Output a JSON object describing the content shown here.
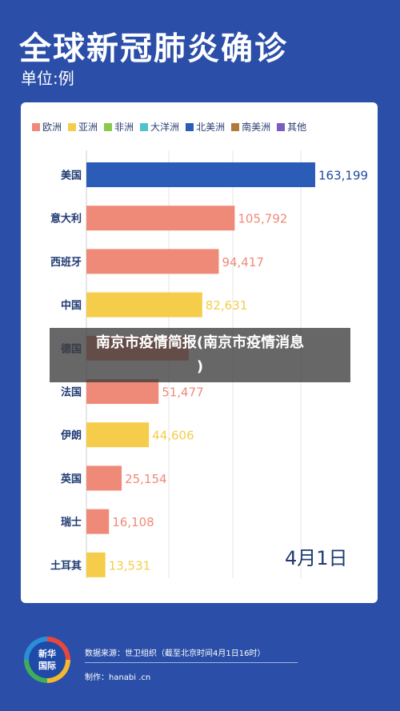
{
  "header": {
    "title": "全球新冠肺炎确诊",
    "unit": "单位:例"
  },
  "legend": [
    {
      "label": "欧洲",
      "color": "#f08a78"
    },
    {
      "label": "亚洲",
      "color": "#f5cd4a"
    },
    {
      "label": "非洲",
      "color": "#8cc84b"
    },
    {
      "label": "大洋洲",
      "color": "#4fc3cc"
    },
    {
      "label": "北美洲",
      "color": "#2a5cb8"
    },
    {
      "label": "南美洲",
      "color": "#b07a3a"
    },
    {
      "label": "其他",
      "color": "#7b5bc4"
    }
  ],
  "chart_data": {
    "type": "bar",
    "orientation": "horizontal",
    "categories": [
      "美国",
      "意大利",
      "西班牙",
      "中国",
      "德国",
      "法国",
      "伊朗",
      "英国",
      "瑞士",
      "土耳其"
    ],
    "values": [
      163199,
      105792,
      94417,
      82631,
      73000,
      51477,
      44606,
      25154,
      16108,
      13531
    ],
    "value_labels": [
      "163,199",
      "105,792",
      "94,417",
      "82,631",
      "",
      "51,477",
      "44,606",
      "25,154",
      "16,108",
      "13,531"
    ],
    "regions": [
      "北美洲",
      "欧洲",
      "欧洲",
      "亚洲",
      "欧洲",
      "欧洲",
      "亚洲",
      "欧洲",
      "欧洲",
      "亚洲"
    ],
    "xlim": [
      0,
      175000
    ],
    "date_label": "4月1日"
  },
  "footer": {
    "logo_line1": "新华",
    "logo_line2": "国际",
    "source": "数据来源：世卫组织（截至北京时间4月1日16时）",
    "maker": "制作：hanabi .cn"
  },
  "overlay": {
    "line1": "南京市疫情简报(南京市疫情消息",
    "line2": ")"
  }
}
